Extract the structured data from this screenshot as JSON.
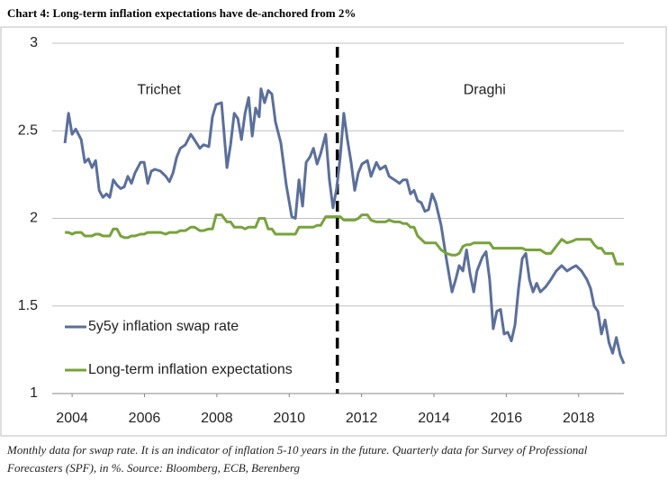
{
  "chart_data": {
    "type": "line",
    "title": "Chart 4: Long-term inflation expectations have de-anchored from 2%",
    "note": "Monthly data for swap rate. It is an indicator of inflation 5-10 years in the future. Quarterly data for Survey of Professional Forecasters (SPF), in %. Source: Bloomberg, ECB, Berenberg",
    "annotations": [
      {
        "text": "Trichet",
        "x": 2006.4,
        "y": 2.73
      },
      {
        "text": "Draghi",
        "x": 2015.4,
        "y": 2.73
      }
    ],
    "vline": {
      "x": 2011.33,
      "style": "dashed"
    },
    "legend": "lower left",
    "grid": true,
    "xlim": [
      2003.45,
      2019.25
    ],
    "xticks": [
      2004,
      2006,
      2008,
      2010,
      2012,
      2014,
      2016,
      2018
    ],
    "ylim": [
      1,
      3
    ],
    "yticks": [
      1,
      1.5,
      2,
      2.5,
      3
    ],
    "x": [
      2003.8,
      2003.9,
      2004.0,
      2004.1,
      2004.25,
      2004.35,
      2004.45,
      2004.55,
      2004.65,
      2004.75,
      2004.85,
      2004.95,
      2005.04,
      2005.14,
      2005.24,
      2005.34,
      2005.44,
      2005.54,
      2005.64,
      2005.74,
      2005.89,
      2005.99,
      2006.09,
      2006.19,
      2006.29,
      2006.44,
      2006.59,
      2006.69,
      2006.79,
      2006.89,
      2006.99,
      2007.13,
      2007.28,
      2007.38,
      2007.53,
      2007.63,
      2007.78,
      2007.88,
      2007.98,
      2008.13,
      2008.28,
      2008.38,
      2008.48,
      2008.58,
      2008.68,
      2008.78,
      2008.88,
      2008.98,
      2009.07,
      2009.17,
      2009.22,
      2009.32,
      2009.42,
      2009.52,
      2009.62,
      2009.77,
      2009.92,
      2010.07,
      2010.17,
      2010.27,
      2010.37,
      2010.47,
      2010.57,
      2010.67,
      2010.77,
      2010.87,
      2011.01,
      2011.11,
      2011.21,
      2011.31,
      2011.41,
      2011.51,
      2011.61,
      2011.71,
      2011.81,
      2011.91,
      2012.01,
      2012.16,
      2012.26,
      2012.41,
      2012.51,
      2012.66,
      2012.76,
      2012.91,
      2013.05,
      2013.15,
      2013.25,
      2013.35,
      2013.45,
      2013.55,
      2013.65,
      2013.75,
      2013.85,
      2013.95,
      2014.05,
      2014.2,
      2014.35,
      2014.5,
      2014.6,
      2014.7,
      2014.8,
      2014.9,
      2015.0,
      2015.1,
      2015.19,
      2015.34,
      2015.44,
      2015.54,
      2015.64,
      2015.74,
      2015.84,
      2015.94,
      2016.04,
      2016.14,
      2016.24,
      2016.34,
      2016.44,
      2016.54,
      2016.64,
      2016.74,
      2016.84,
      2016.94,
      2017.09,
      2017.23,
      2017.38,
      2017.53,
      2017.68,
      2017.83,
      2017.93,
      2018.08,
      2018.23,
      2018.33,
      2018.43,
      2018.53,
      2018.63,
      2018.73,
      2018.84,
      2018.94,
      2019.04,
      2019.15,
      2019.25
    ],
    "series": [
      {
        "name": "5y5y inflation swap rate",
        "color": "#5b6f9b",
        "values": [
          2.43,
          2.6,
          2.48,
          2.51,
          2.45,
          2.32,
          2.34,
          2.29,
          2.33,
          2.16,
          2.12,
          2.14,
          2.12,
          2.22,
          2.19,
          2.17,
          2.18,
          2.24,
          2.2,
          2.26,
          2.32,
          2.32,
          2.2,
          2.27,
          2.28,
          2.27,
          2.24,
          2.21,
          2.26,
          2.35,
          2.4,
          2.42,
          2.48,
          2.45,
          2.4,
          2.42,
          2.41,
          2.58,
          2.65,
          2.66,
          2.29,
          2.42,
          2.6,
          2.57,
          2.45,
          2.6,
          2.69,
          2.47,
          2.63,
          2.58,
          2.74,
          2.66,
          2.73,
          2.71,
          2.55,
          2.43,
          2.19,
          2.01,
          2.0,
          2.22,
          2.07,
          2.32,
          2.35,
          2.4,
          2.31,
          2.37,
          2.48,
          2.22,
          2.06,
          2.17,
          2.35,
          2.6,
          2.45,
          2.32,
          2.16,
          2.26,
          2.31,
          2.33,
          2.24,
          2.32,
          2.28,
          2.3,
          2.24,
          2.22,
          2.2,
          2.22,
          2.22,
          2.14,
          2.16,
          2.1,
          2.09,
          2.04,
          2.05,
          2.14,
          2.09,
          1.96,
          1.76,
          1.58,
          1.65,
          1.73,
          1.7,
          1.82,
          1.68,
          1.58,
          1.7,
          1.78,
          1.81,
          1.65,
          1.37,
          1.47,
          1.48,
          1.34,
          1.35,
          1.3,
          1.39,
          1.6,
          1.77,
          1.8,
          1.65,
          1.58,
          1.63,
          1.58,
          1.61,
          1.65,
          1.7,
          1.73,
          1.7,
          1.72,
          1.73,
          1.7,
          1.65,
          1.6,
          1.5,
          1.47,
          1.34,
          1.42,
          1.29,
          1.23,
          1.32,
          1.22,
          1.17
        ]
      },
      {
        "name": "Long-term inflation expectations",
        "color": "#77a33a",
        "values": [
          1.92,
          1.92,
          1.91,
          1.92,
          1.92,
          1.9,
          1.9,
          1.9,
          1.91,
          1.91,
          1.9,
          1.9,
          1.9,
          1.94,
          1.94,
          1.9,
          1.89,
          1.89,
          1.9,
          1.9,
          1.91,
          1.91,
          1.92,
          1.92,
          1.92,
          1.92,
          1.91,
          1.92,
          1.92,
          1.92,
          1.93,
          1.93,
          1.95,
          1.95,
          1.93,
          1.93,
          1.94,
          1.94,
          2.02,
          2.02,
          1.98,
          1.98,
          1.95,
          1.95,
          1.95,
          1.94,
          1.95,
          1.95,
          1.95,
          2.0,
          2.0,
          2.0,
          1.94,
          1.94,
          1.91,
          1.91,
          1.91,
          1.91,
          1.91,
          1.95,
          1.95,
          1.95,
          1.95,
          1.95,
          1.96,
          1.96,
          2.01,
          2.01,
          2.01,
          2.01,
          2.01,
          1.99,
          1.99,
          1.99,
          1.99,
          2.0,
          2.02,
          2.02,
          1.99,
          1.98,
          1.98,
          1.98,
          1.99,
          1.98,
          1.98,
          1.97,
          1.97,
          1.95,
          1.95,
          1.9,
          1.88,
          1.86,
          1.86,
          1.86,
          1.86,
          1.82,
          1.8,
          1.79,
          1.79,
          1.8,
          1.84,
          1.85,
          1.85,
          1.86,
          1.86,
          1.86,
          1.86,
          1.86,
          1.83,
          1.83,
          1.83,
          1.83,
          1.83,
          1.83,
          1.83,
          1.83,
          1.83,
          1.82,
          1.82,
          1.82,
          1.82,
          1.82,
          1.8,
          1.8,
          1.84,
          1.88,
          1.86,
          1.87,
          1.88,
          1.88,
          1.88,
          1.88,
          1.85,
          1.83,
          1.83,
          1.8,
          1.8,
          1.8,
          1.74,
          1.74,
          1.74
        ]
      }
    ]
  }
}
